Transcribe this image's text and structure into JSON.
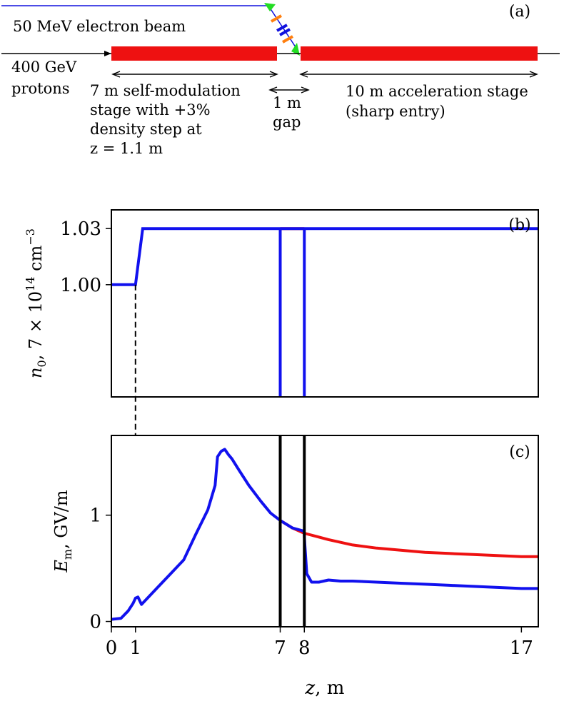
{
  "schematic": {
    "panel_label": "(a)",
    "electron_beam_label": "50 MeV electron beam",
    "proton_label_line1": "400 GeV",
    "proton_label_line2": "protons",
    "stage1_label": [
      "7 m self-modulation",
      "stage with +3%",
      "density step at",
      "z = 1.1 m"
    ],
    "gap_label": [
      "1 m",
      "gap"
    ],
    "stage2_label": [
      "10 m acceleration stage",
      "(sharp entry)"
    ],
    "colors": {
      "plasma": "#ee1111",
      "electron_beam": "#1111dd",
      "marker_green": "#22dd22",
      "marker_orange": "#ff7f0e"
    }
  },
  "chart_data": [
    {
      "type": "line",
      "panel_label": "(b)",
      "xlabel": "",
      "ylabel": "n₀, 7 × 10¹⁴ cm⁻³",
      "ylabel_parts": {
        "main": "n",
        "sub": "0",
        "rest": ", 7 × 10",
        "sup": "14",
        "unit": " cm",
        "unit_sup": "−3"
      },
      "xlim": [
        0,
        17.7
      ],
      "ylim": [
        0.94,
        1.04
      ],
      "yticks": [
        "1.00",
        "1.03"
      ],
      "ytick_values": [
        1.0,
        1.03
      ],
      "series": [
        {
          "color": "#ee1111",
          "x": [
            7,
            8
          ],
          "y": [
            1.03,
            1.03
          ]
        },
        {
          "color": "#1111ee",
          "x": [
            0,
            1.0,
            1.3,
            7.0,
            7.0,
            7.0,
            8.0,
            8.0,
            8.0,
            17.7
          ],
          "y": [
            1.0,
            1.0,
            1.03,
            1.03,
            0.94,
            1.03,
            1.03,
            0.94,
            1.03,
            1.03
          ],
          "note_gaps": [
            [
              7.0,
              8.0
            ]
          ]
        }
      ]
    },
    {
      "type": "line",
      "panel_label": "(c)",
      "xlabel": "z, m",
      "ylabel": "Eₘ, GV/m",
      "ylabel_parts": {
        "main": "E",
        "sub": "m",
        "rest": ", GV/m"
      },
      "xlim": [
        0,
        17.7
      ],
      "ylim": [
        -0.05,
        1.75
      ],
      "xticks": [
        "0",
        "1",
        "7",
        "8",
        "17"
      ],
      "xtick_values": [
        0,
        1,
        7,
        8,
        17
      ],
      "yticks": [
        "0",
        "1"
      ],
      "ytick_values": [
        0,
        1
      ],
      "vlines": [
        7,
        8
      ],
      "dashed_connector_x": 1,
      "series": [
        {
          "color": "#ee1111",
          "x": [
            7.0,
            7.5,
            8.0,
            8.5,
            9.0,
            10.0,
            11.0,
            12.0,
            13.0,
            14.0,
            15.0,
            16.0,
            17.0,
            17.7
          ],
          "y": [
            0.95,
            0.88,
            0.83,
            0.8,
            0.77,
            0.72,
            0.69,
            0.67,
            0.65,
            0.64,
            0.63,
            0.62,
            0.61,
            0.61
          ]
        },
        {
          "color": "#1111ee",
          "x": [
            0.0,
            0.4,
            0.7,
            0.9,
            1.0,
            1.1,
            1.25,
            1.5,
            2.0,
            2.5,
            3.0,
            3.5,
            4.0,
            4.3,
            4.4,
            4.55,
            4.7,
            4.85,
            5.0,
            5.3,
            5.7,
            6.2,
            6.6,
            7.0,
            7.5,
            7.99,
            8.02,
            8.1,
            8.3,
            8.6,
            9.0,
            9.5,
            10.0,
            11.0,
            12.0,
            13.0,
            14.0,
            15.0,
            16.0,
            17.0,
            17.7
          ],
          "y": [
            0.02,
            0.03,
            0.1,
            0.17,
            0.22,
            0.23,
            0.16,
            0.22,
            0.34,
            0.46,
            0.58,
            0.82,
            1.05,
            1.28,
            1.55,
            1.6,
            1.62,
            1.57,
            1.53,
            1.42,
            1.28,
            1.13,
            1.02,
            0.95,
            0.88,
            0.85,
            0.72,
            0.45,
            0.37,
            0.37,
            0.39,
            0.38,
            0.38,
            0.37,
            0.36,
            0.35,
            0.34,
            0.33,
            0.32,
            0.31,
            0.31
          ]
        }
      ]
    }
  ]
}
